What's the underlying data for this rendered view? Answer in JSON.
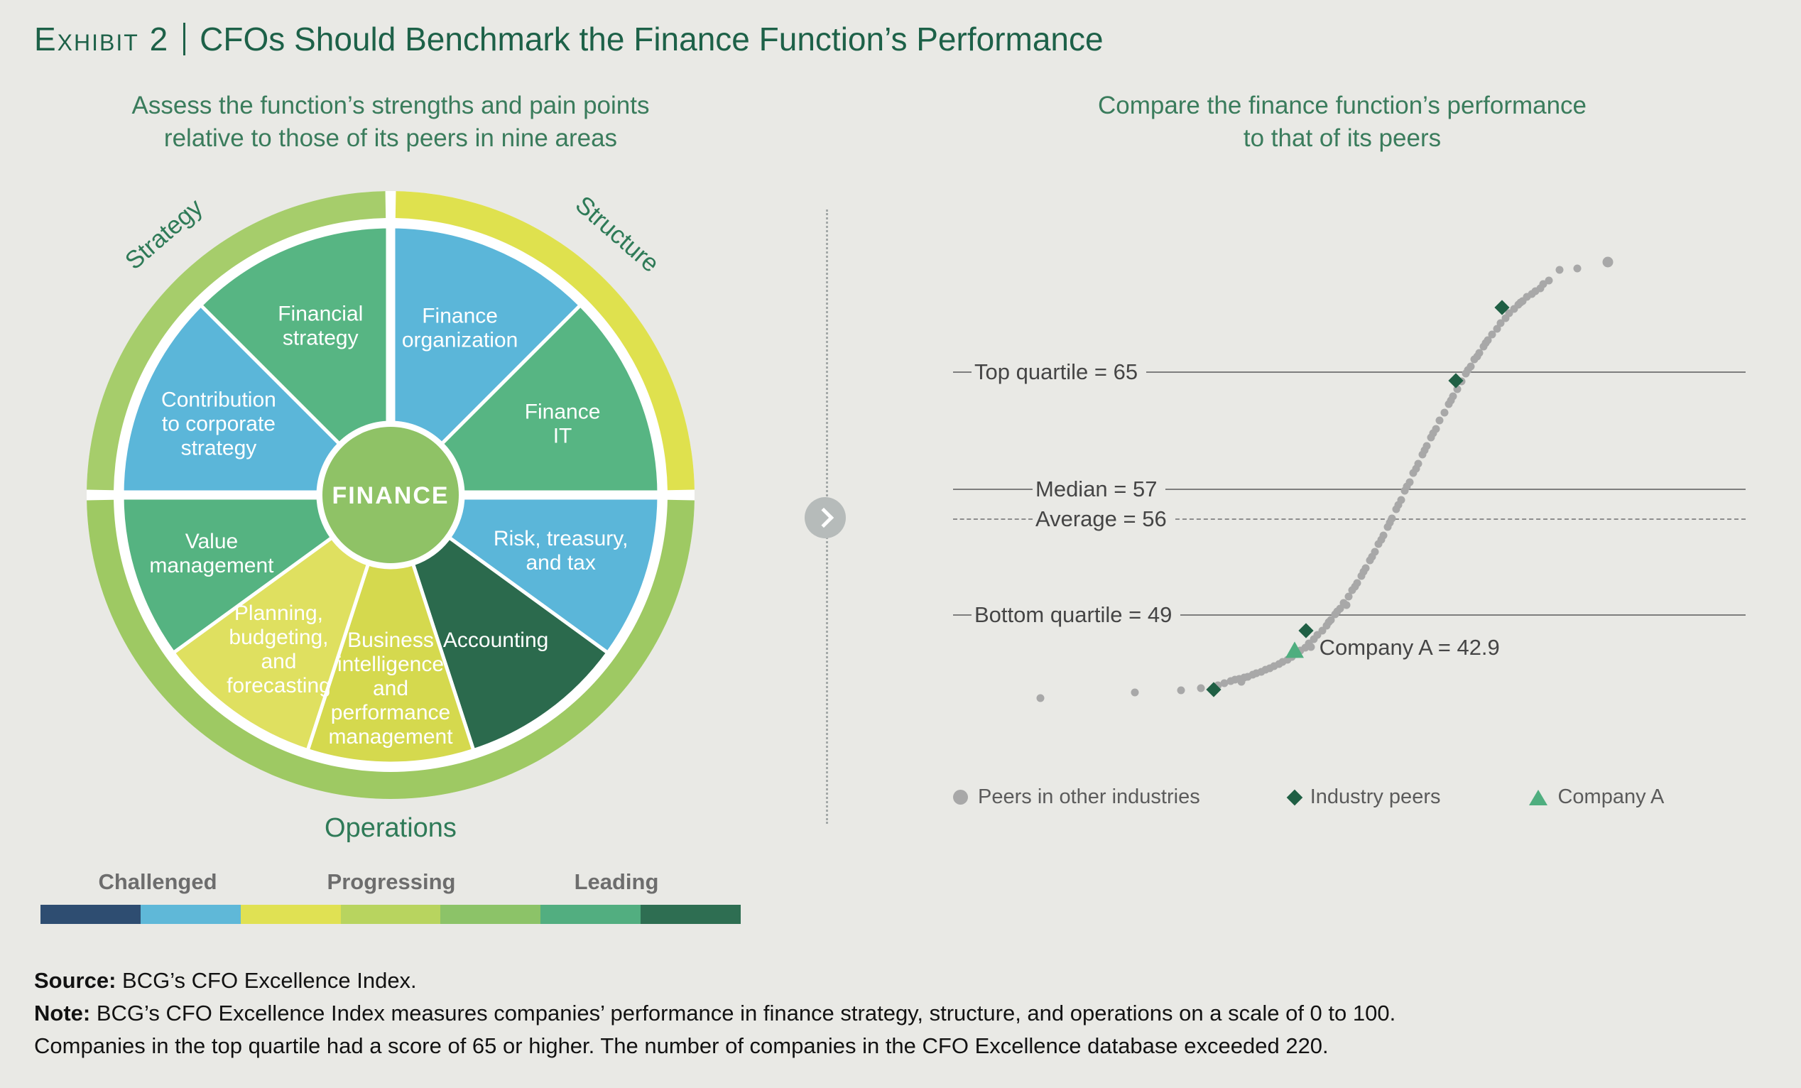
{
  "page": {
    "exhibit_label": "Exhibit 2",
    "title": "CFOs Should Benchmark the Finance Function’s Performance",
    "accent_green": "#1d6148",
    "background": "#e9e9e5"
  },
  "left_panel": {
    "heading_line1": "Assess the function’s strengths and pain points",
    "heading_line2": "relative to those of its peers in nine areas",
    "maturity_scale": {
      "labels": [
        "Challenged",
        "Progressing",
        "Leading"
      ],
      "colors": [
        "#2e4d71",
        "#5fb8d8",
        "#e0e153",
        "#b8d45f",
        "#8cc368",
        "#52ae80",
        "#2e6e52"
      ]
    }
  },
  "right_panel": {
    "heading_line1": "Compare the finance function’s performance",
    "heading_line2": "to that of its peers"
  },
  "footer": {
    "source_label": "Source:",
    "source_text": " BCG’s CFO Excellence Index.",
    "note_label": "Note:",
    "note_text": " BCG’s CFO Excellence Index measures companies’ performance in finance strategy, structure, and operations on a scale of 0 to 100.",
    "note_text2": "Companies in the top quartile had a score of 65 or higher. The number of companies in the CFO Excellence database exceeded 220."
  },
  "chart_data": [
    {
      "type": "pie",
      "title": "Nine areas of the finance function",
      "center_label": "FINANCE",
      "center_color": "#8fc266",
      "group_dividers": [
        0,
        90,
        270
      ],
      "group_labels": [
        {
          "text": "Strategy",
          "angle": -41,
          "radius": 475,
          "rotation": -41
        },
        {
          "text": "Structure",
          "angle": 41,
          "radius": 475,
          "rotation": 41
        },
        {
          "text": "Operations",
          "angle": 180,
          "radius": 481,
          "rotation": 0
        }
      ],
      "ring": [
        {
          "start": 1,
          "end": 89,
          "color": "#dfe14e",
          "group": "Structure"
        },
        {
          "start": 91,
          "end": 269,
          "color": "#9ec963",
          "group": "Operations"
        },
        {
          "start": 271,
          "end": 359,
          "color": "#a6cd6b",
          "group": "Strategy"
        }
      ],
      "segments": [
        {
          "label": [
            "Finance",
            "organization"
          ],
          "group": "Structure",
          "color": "#5bb6d9",
          "start": 0,
          "end": 45,
          "label_r": 255
        },
        {
          "label": [
            "Finance",
            "IT"
          ],
          "group": "Structure",
          "color": "#57b583",
          "start": 45,
          "end": 90,
          "label_r": 262
        },
        {
          "label": [
            "Risk, treasury,",
            "and tax"
          ],
          "group": "Operations",
          "color": "#5bb6d9",
          "start": 90,
          "end": 126,
          "label_r": 252
        },
        {
          "label": [
            "Accounting"
          ],
          "group": "Operations",
          "color": "#2b6a4d",
          "start": 126,
          "end": 162,
          "label_r": 252
        },
        {
          "label": [
            "Business",
            "intelligence",
            "and",
            "performance",
            "management"
          ],
          "group": "Operations",
          "color": "#d5d94e",
          "start": 162,
          "end": 198,
          "label_r": 272
        },
        {
          "label": [
            "Planning,",
            "budgeting,",
            "and",
            "forecasting"
          ],
          "group": "Operations",
          "color": "#dfe060",
          "start": 198,
          "end": 234,
          "label_r": 268
        },
        {
          "label": [
            "Value",
            "management"
          ],
          "group": "Operations",
          "color": "#55b381",
          "start": 234,
          "end": 270,
          "label_r": 265
        },
        {
          "label": [
            "Contribution",
            "to corporate",
            "strategy"
          ],
          "group": "Strategy",
          "color": "#5bb6d9",
          "start": 270,
          "end": 315,
          "label_r": 262
        },
        {
          "label": [
            "Financial",
            "strategy"
          ],
          "group": "Strategy",
          "color": "#57b583",
          "start": 315,
          "end": 360,
          "label_r": 258
        }
      ]
    },
    {
      "type": "scatter",
      "title": "CFO Excellence Index score distribution across peer companies",
      "reference_lines": [
        {
          "label": "Top quartile = 65",
          "value": 65,
          "y_pct": 27.8,
          "style": "solid",
          "lead": "short"
        },
        {
          "label": "Median = 57",
          "value": 57,
          "y_pct": 52.7,
          "style": "solid",
          "lead": "long"
        },
        {
          "label": "Average = 56",
          "value": 56,
          "y_pct": 59.0,
          "style": "dashed",
          "lead": "long"
        },
        {
          "label": "Bottom quartile = 49",
          "value": 49,
          "y_pct": 79.4,
          "style": "solid",
          "lead": "short"
        }
      ],
      "company_a": {
        "label": "Company A = 42.9",
        "value": 42.9,
        "x_pct": 43.1,
        "y_pct": 86.9,
        "label_x_pct": 46.2,
        "label_y_pct": 86.2
      },
      "industry_peers": [
        [
          32.9,
          95.2
        ],
        [
          44.5,
          82.7
        ],
        [
          63.4,
          29.6
        ],
        [
          69.3,
          14.0
        ]
      ],
      "points": [
        [
          11.0,
          97.0
        ],
        [
          22.9,
          95.8
        ],
        [
          28.8,
          95.3
        ],
        [
          31.3,
          94.8
        ],
        [
          33.4,
          94.3
        ],
        [
          34.2,
          93.8
        ],
        [
          35.0,
          93.3
        ],
        [
          35.6,
          93.0
        ],
        [
          36.1,
          92.9
        ],
        [
          36.4,
          93.5
        ],
        [
          36.7,
          92.6
        ],
        [
          37.2,
          92.4
        ],
        [
          37.8,
          92.0
        ],
        [
          38.3,
          91.7
        ],
        [
          38.9,
          91.4
        ],
        [
          39.4,
          91.0
        ],
        [
          40.0,
          90.6
        ],
        [
          40.5,
          90.2
        ],
        [
          41.1,
          89.7
        ],
        [
          41.6,
          89.3
        ],
        [
          42.2,
          88.8
        ],
        [
          42.7,
          88.3
        ],
        [
          43.3,
          87.7
        ],
        [
          43.8,
          86.9
        ],
        [
          44.4,
          86.2
        ],
        [
          44.9,
          85.4
        ],
        [
          45.2,
          86.1
        ],
        [
          45.5,
          84.5
        ],
        [
          46.0,
          83.6
        ],
        [
          46.6,
          82.6
        ],
        [
          47.1,
          81.6
        ],
        [
          47.4,
          80.9
        ],
        [
          47.7,
          80.4
        ],
        [
          48.2,
          79.2
        ],
        [
          48.5,
          78.6
        ],
        [
          48.8,
          78.0
        ],
        [
          49.3,
          76.8
        ],
        [
          49.6,
          77.3
        ],
        [
          49.9,
          75.4
        ],
        [
          50.4,
          74.0
        ],
        [
          50.7,
          73.3
        ],
        [
          51.0,
          72.6
        ],
        [
          51.5,
          71.0
        ],
        [
          51.8,
          70.2
        ],
        [
          52.1,
          69.4
        ],
        [
          52.6,
          67.7
        ],
        [
          52.9,
          67.0
        ],
        [
          53.2,
          65.9
        ],
        [
          53.7,
          64.2
        ],
        [
          54.0,
          63.3
        ],
        [
          54.3,
          62.4
        ],
        [
          54.8,
          60.7
        ],
        [
          55.1,
          59.7
        ],
        [
          55.4,
          58.8
        ],
        [
          55.9,
          56.9
        ],
        [
          56.2,
          55.9
        ],
        [
          56.5,
          54.9
        ],
        [
          57.0,
          53.0
        ],
        [
          57.3,
          52.0
        ],
        [
          57.6,
          51.1
        ],
        [
          58.1,
          49.2
        ],
        [
          58.4,
          48.2
        ],
        [
          58.7,
          47.2
        ],
        [
          59.2,
          45.3
        ],
        [
          59.5,
          44.4
        ],
        [
          59.8,
          43.5
        ],
        [
          60.3,
          41.7
        ],
        [
          60.6,
          40.7
        ],
        [
          60.9,
          39.8
        ],
        [
          61.4,
          38.0
        ],
        [
          62.0,
          36.3
        ],
        [
          62.5,
          34.6
        ],
        [
          62.8,
          33.8
        ],
        [
          63.1,
          32.9
        ],
        [
          63.6,
          31.3
        ],
        [
          64.2,
          29.7
        ],
        [
          64.7,
          28.1
        ],
        [
          65.0,
          27.3
        ],
        [
          65.3,
          26.6
        ],
        [
          65.8,
          25.1
        ],
        [
          66.1,
          24.4
        ],
        [
          66.4,
          23.7
        ],
        [
          66.9,
          22.3
        ],
        [
          67.2,
          21.6
        ],
        [
          67.5,
          21.0
        ],
        [
          68.0,
          19.8
        ],
        [
          68.6,
          18.5
        ],
        [
          69.1,
          17.3
        ],
        [
          69.7,
          16.3
        ],
        [
          70.2,
          15.3
        ],
        [
          70.8,
          14.3
        ],
        [
          71.3,
          13.4
        ],
        [
          71.6,
          13.0
        ],
        [
          71.9,
          12.6
        ],
        [
          72.4,
          11.8
        ],
        [
          73.0,
          11.1
        ],
        [
          73.5,
          10.5
        ],
        [
          74.1,
          10.0
        ],
        [
          74.5,
          9.0
        ],
        [
          75.2,
          8.3
        ],
        [
          76.5,
          6.1
        ],
        [
          78.8,
          5.7
        ],
        [
          82.6,
          4.3,
          15
        ]
      ],
      "legend": [
        {
          "marker": "circle",
          "label": "Peers in other industries",
          "color": "#a8a8a8"
        },
        {
          "marker": "diamond",
          "label": "Industry peers",
          "color": "#1f5f44"
        },
        {
          "marker": "triangle",
          "label": "Company A",
          "color": "#4fae7f"
        }
      ],
      "layout": {
        "grid": false,
        "legend_position": "bottom"
      }
    }
  ]
}
